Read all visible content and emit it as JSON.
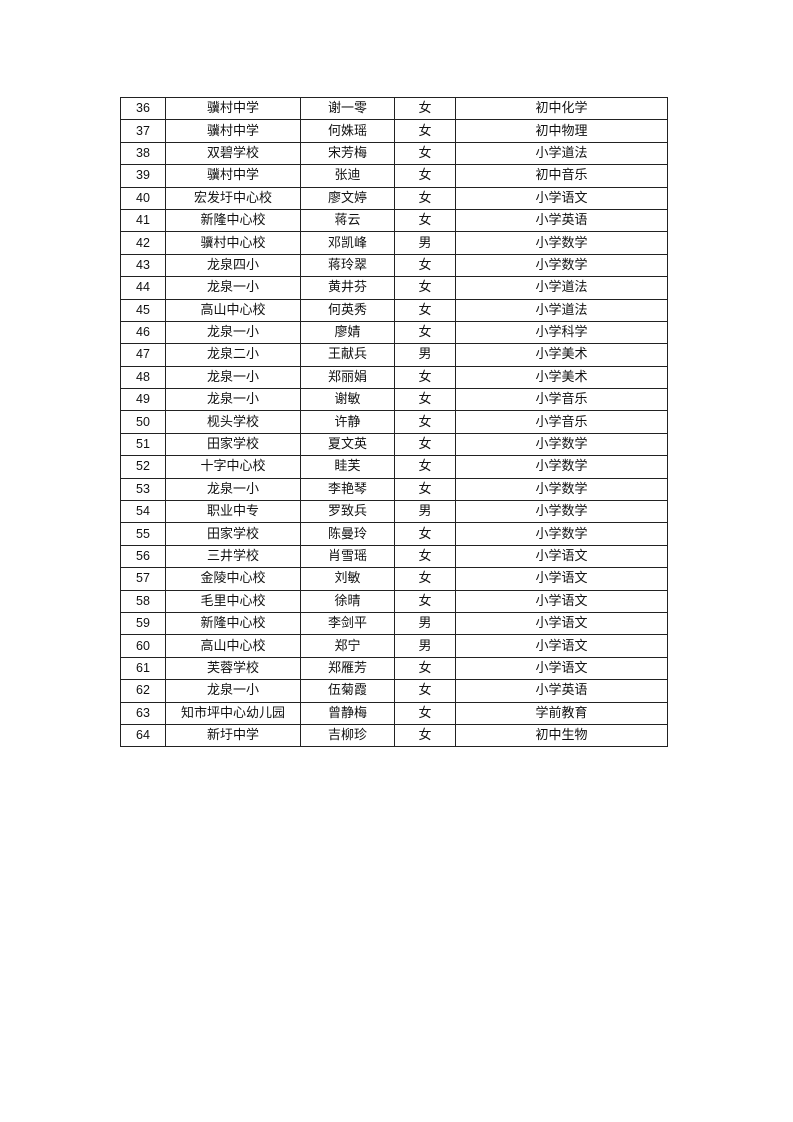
{
  "table": {
    "rows": [
      {
        "no": "36",
        "school": "骥村中学",
        "name": "谢一零",
        "gender": "女",
        "subject": "初中化学"
      },
      {
        "no": "37",
        "school": "骥村中学",
        "name": "何姝瑶",
        "gender": "女",
        "subject": "初中物理"
      },
      {
        "no": "38",
        "school": "双碧学校",
        "name": "宋芳梅",
        "gender": "女",
        "subject": "小学道法"
      },
      {
        "no": "39",
        "school": "骥村中学",
        "name": "张迪",
        "gender": "女",
        "subject": "初中音乐"
      },
      {
        "no": "40",
        "school": "宏发圩中心校",
        "name": "廖文婷",
        "gender": "女",
        "subject": "小学语文"
      },
      {
        "no": "41",
        "school": "新隆中心校",
        "name": "蒋云",
        "gender": "女",
        "subject": "小学英语"
      },
      {
        "no": "42",
        "school": "骥村中心校",
        "name": "邓凯峰",
        "gender": "男",
        "subject": "小学数学"
      },
      {
        "no": "43",
        "school": "龙泉四小",
        "name": "蒋玲翠",
        "gender": "女",
        "subject": "小学数学"
      },
      {
        "no": "44",
        "school": "龙泉一小",
        "name": "黄井芬",
        "gender": "女",
        "subject": "小学道法"
      },
      {
        "no": "45",
        "school": "高山中心校",
        "name": "何英秀",
        "gender": "女",
        "subject": "小学道法"
      },
      {
        "no": "46",
        "school": "龙泉一小",
        "name": "廖婧",
        "gender": "女",
        "subject": "小学科学"
      },
      {
        "no": "47",
        "school": "龙泉二小",
        "name": "王献兵",
        "gender": "男",
        "subject": "小学美术"
      },
      {
        "no": "48",
        "school": "龙泉一小",
        "name": "郑丽娟",
        "gender": "女",
        "subject": "小学美术"
      },
      {
        "no": "49",
        "school": "龙泉一小",
        "name": "谢敏",
        "gender": "女",
        "subject": "小学音乐"
      },
      {
        "no": "50",
        "school": "枧头学校",
        "name": "许静",
        "gender": "女",
        "subject": "小学音乐"
      },
      {
        "no": "51",
        "school": "田家学校",
        "name": "夏文英",
        "gender": "女",
        "subject": "小学数学"
      },
      {
        "no": "52",
        "school": "十字中心校",
        "name": "眭芙",
        "gender": "女",
        "subject": "小学数学"
      },
      {
        "no": "53",
        "school": "龙泉一小",
        "name": "李艳琴",
        "gender": "女",
        "subject": "小学数学"
      },
      {
        "no": "54",
        "school": "职业中专",
        "name": "罗致兵",
        "gender": "男",
        "subject": "小学数学"
      },
      {
        "no": "55",
        "school": "田家学校",
        "name": "陈曼玲",
        "gender": "女",
        "subject": "小学数学"
      },
      {
        "no": "56",
        "school": "三井学校",
        "name": "肖雪瑶",
        "gender": "女",
        "subject": "小学语文"
      },
      {
        "no": "57",
        "school": "金陵中心校",
        "name": "刘敏",
        "gender": "女",
        "subject": "小学语文"
      },
      {
        "no": "58",
        "school": "毛里中心校",
        "name": "徐晴",
        "gender": "女",
        "subject": "小学语文"
      },
      {
        "no": "59",
        "school": "新隆中心校",
        "name": "李剑平",
        "gender": "男",
        "subject": "小学语文"
      },
      {
        "no": "60",
        "school": "高山中心校",
        "name": "郑宁",
        "gender": "男",
        "subject": "小学语文"
      },
      {
        "no": "61",
        "school": "芙蓉学校",
        "name": "郑雁芳",
        "gender": "女",
        "subject": "小学语文"
      },
      {
        "no": "62",
        "school": "龙泉一小",
        "name": "伍菊霞",
        "gender": "女",
        "subject": "小学英语"
      },
      {
        "no": "63",
        "school": "知市坪中心幼儿园",
        "name": "曾静梅",
        "gender": "女",
        "subject": "学前教育"
      },
      {
        "no": "64",
        "school": "新圩中学",
        "name": "吉柳珍",
        "gender": "女",
        "subject": "初中生物"
      }
    ]
  }
}
